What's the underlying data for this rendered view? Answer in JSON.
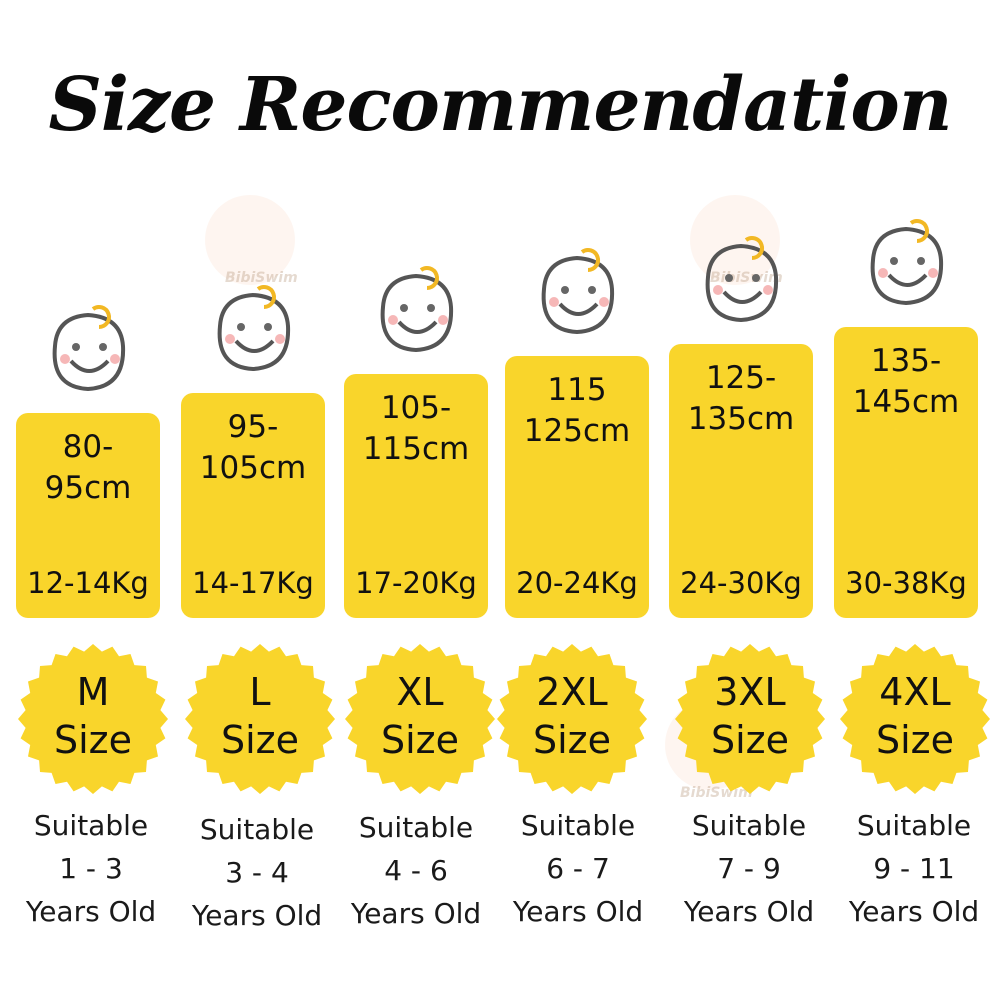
{
  "title": "Size Recommendation",
  "watermark": "BibiSwim",
  "colors": {
    "card": "#F9D52B",
    "badge": "#F9D52B",
    "face_hair": "#F2B824",
    "face_line": "#555555",
    "cheek": "#F6B7B7"
  },
  "columns": [
    {
      "height": "80-\n95cm",
      "weight": "12-14Kg",
      "size": "M\nSize",
      "suitable": "Suitable\n1 - 3\nYears Old"
    },
    {
      "height": "95-\n105cm",
      "weight": "14-17Kg",
      "size": "L\nSize",
      "suitable": "Suitable\n3 - 4\nYears Old"
    },
    {
      "height": "105-\n115cm",
      "weight": "17-20Kg",
      "size": "XL\nSize",
      "suitable": "Suitable\n4 - 6\nYears Old"
    },
    {
      "height": "115\n125cm",
      "weight": "20-24Kg",
      "size": "2XL\nSize",
      "suitable": "Suitable\n6 - 7\nYears Old"
    },
    {
      "height": "125-\n135cm",
      "weight": "24-30Kg",
      "size": "3XL\nSize",
      "suitable": "Suitable\n7 - 9\nYears Old"
    },
    {
      "height": "135-\n145cm",
      "weight": "30-38Kg",
      "size": "4XL\nSize",
      "suitable": "Suitable\n9 - 11\nYears Old"
    }
  ]
}
